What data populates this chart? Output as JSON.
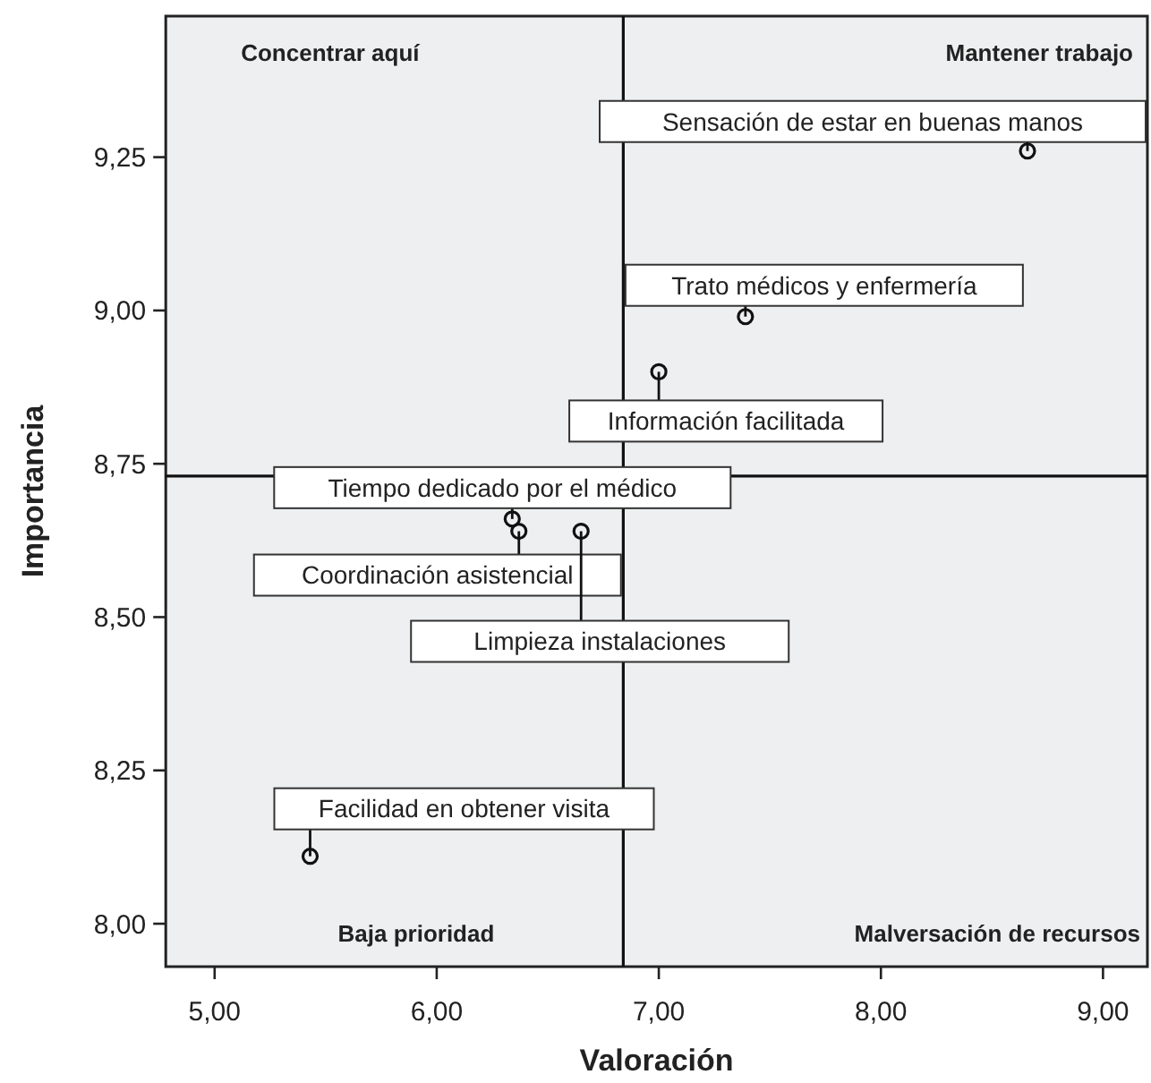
{
  "chart_data": {
    "type": "scatter",
    "xlabel": "Valoración",
    "ylabel": "Importancia",
    "xlim": [
      4.78,
      9.2
    ],
    "ylim": [
      7.93,
      9.48
    ],
    "xticks": [
      {
        "value": 5,
        "label": "5,00"
      },
      {
        "value": 6,
        "label": "6,00"
      },
      {
        "value": 7,
        "label": "7,00"
      },
      {
        "value": 8,
        "label": "8,00"
      },
      {
        "value": 9,
        "label": "9,00"
      }
    ],
    "yticks": [
      {
        "value": 8,
        "label": "8,00"
      },
      {
        "value": 8.25,
        "label": "8,25"
      },
      {
        "value": 8.5,
        "label": "8,50"
      },
      {
        "value": 8.75,
        "label": "8,75"
      },
      {
        "value": 9,
        "label": "9,00"
      },
      {
        "value": 9.25,
        "label": "9,25"
      }
    ],
    "grid": false,
    "marker": "circle",
    "series": [
      {
        "color": "#111111",
        "x": [
          8.66,
          7.39,
          7.0,
          6.34,
          6.37,
          6.65,
          5.43
        ],
        "values": [
          9.26,
          8.99,
          8.9,
          8.66,
          8.64,
          8.64,
          8.11
        ]
      }
    ],
    "ref_lines": [
      {
        "axis": "x",
        "value": 6.84,
        "color": "#111111"
      },
      {
        "axis": "y",
        "value": 8.73,
        "color": "#111111"
      }
    ],
    "annotations": [
      "Concentrar aquí",
      "Mantener trabajo",
      "Baja prioridad",
      "Malversación de recursos",
      {
        "text": "Sensación de estar en buenas manos",
        "x": 8.66,
        "y": 9.26
      },
      {
        "text": "Trato médicos y enfermería",
        "x": 7.39,
        "y": 8.99
      },
      {
        "text": "Información facilitada",
        "x": 7.0,
        "y": 8.9
      },
      {
        "text": "Tiempo dedicado por el médico",
        "x": 6.34,
        "y": 8.66
      },
      {
        "text": "Coordinación asistencial",
        "x": 6.37,
        "y": 8.64
      },
      {
        "text": "Limpieza instalaciones",
        "x": 6.65,
        "y": 8.64
      },
      {
        "text": "Facilidad en obtener visita",
        "x": 5.43,
        "y": 8.11
      }
    ]
  }
}
